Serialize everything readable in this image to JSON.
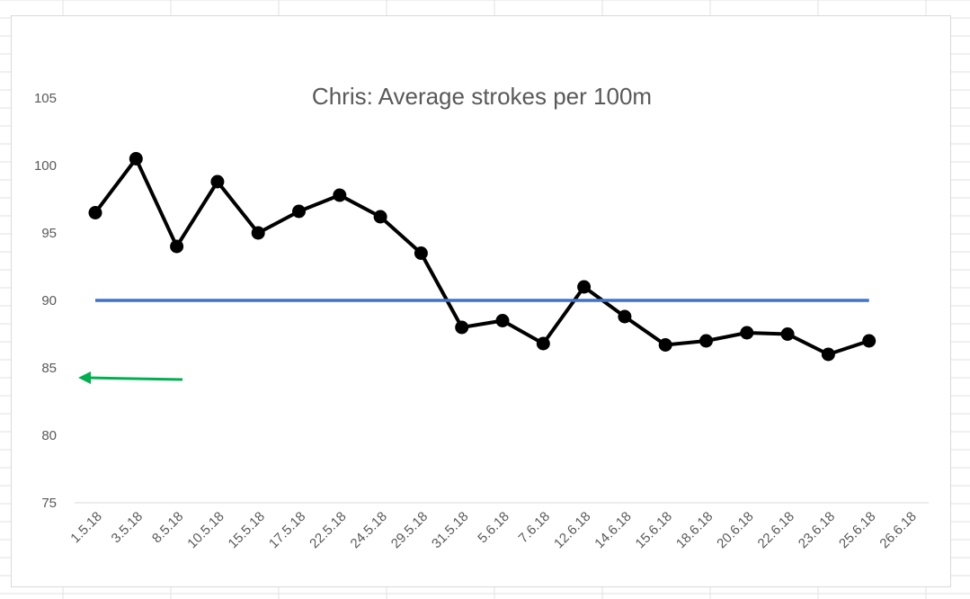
{
  "chart_data": {
    "type": "line",
    "title": "Chris: Average strokes per 100m",
    "xlabel": "",
    "ylabel": "",
    "categories": [
      "1.5.18",
      "3.5.18",
      "8.5.18",
      "10.5.18",
      "15.5.18",
      "17.5.18",
      "22.5.18",
      "24.5.18",
      "29.5.18",
      "31.5.18",
      "5.6.18",
      "7.6.18",
      "12.6.18",
      "14.6.18",
      "15.6.18",
      "18.6.18",
      "20.6.18",
      "22.6.18",
      "23.6.18",
      "25.6.18",
      "26.6.18"
    ],
    "series": [
      {
        "values": [
          96.5,
          100.5,
          94,
          98.8,
          95,
          96.6,
          97.8,
          96.2,
          93.5,
          88,
          88.5,
          86.8,
          91,
          88.8,
          86.7,
          87,
          87.6,
          87.5,
          86,
          87,
          null
        ],
        "color": "#000000",
        "marker": "circle"
      },
      {
        "values": [
          90,
          90,
          90,
          90,
          90,
          90,
          90,
          90,
          90,
          90,
          90,
          90,
          90,
          90,
          90,
          90,
          90,
          90,
          90,
          90,
          null
        ],
        "color": "#4472c4"
      }
    ],
    "yticks": [
      75,
      80,
      85,
      90,
      95,
      100,
      105
    ],
    "ylim": [
      75,
      107
    ],
    "grid": false,
    "annotations": [
      {
        "type": "arrow",
        "color": "#00b050",
        "direction": "left",
        "y_value": 84
      }
    ]
  }
}
